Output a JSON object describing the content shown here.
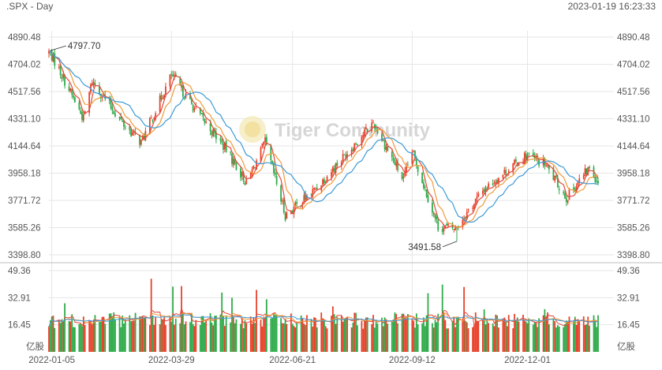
{
  "header": {
    "symbol": ".SPX - Day",
    "timestamp": "2023-01-19 16:23:33"
  },
  "watermark": "Tiger Community",
  "colors": {
    "up": "#e8402a",
    "down": "#2eaa49",
    "ma_fast": "#e24a3b",
    "ma_mid": "#f29a3a",
    "ma_slow": "#3d9ad8",
    "grid": "#e6e6e6",
    "divider": "#bdbdbd"
  },
  "chart_data": [
    {
      "type": "candlestick",
      "title": "",
      "y_ticks": [
        "4890.48",
        "4704.02",
        "4517.56",
        "4331.10",
        "4144.64",
        "3958.18",
        "3771.72",
        "3585.26",
        "3398.80"
      ],
      "ylim": [
        3398.8,
        4890.48
      ],
      "x_ticks": [
        "2022-01-05",
        "2022-03-29",
        "2022-06-21",
        "2022-09-12",
        "2022-12-01"
      ],
      "annotations": [
        {
          "label": "4797.70",
          "value": 4797.7,
          "date": "2022-01-04",
          "kind": "high"
        },
        {
          "label": "3491.58",
          "value": 3491.58,
          "date": "2022-10-13",
          "kind": "low"
        }
      ],
      "moving_averages": [
        "ma_fast",
        "ma_mid",
        "ma_slow"
      ],
      "close_path": [
        [
          "2022-01-03",
          4796
        ],
        [
          "2022-01-10",
          4670
        ],
        [
          "2022-01-27",
          4330
        ],
        [
          "2022-02-02",
          4590
        ],
        [
          "2022-02-24",
          4290
        ],
        [
          "2022-03-08",
          4170
        ],
        [
          "2022-03-29",
          4630
        ],
        [
          "2022-04-14",
          4400
        ],
        [
          "2022-05-06",
          4120
        ],
        [
          "2022-05-20",
          3890
        ],
        [
          "2022-06-02",
          4170
        ],
        [
          "2022-06-16",
          3670
        ],
        [
          "2022-07-05",
          3830
        ],
        [
          "2022-08-16",
          4305
        ],
        [
          "2022-09-06",
          3910
        ],
        [
          "2022-09-12",
          4110
        ],
        [
          "2022-09-30",
          3590
        ],
        [
          "2022-10-12",
          3580
        ],
        [
          "2022-11-01",
          3850
        ],
        [
          "2022-11-30",
          4080
        ],
        [
          "2022-12-13",
          4020
        ],
        [
          "2022-12-28",
          3790
        ],
        [
          "2023-01-13",
          3995
        ],
        [
          "2023-01-19",
          3900
        ]
      ]
    },
    {
      "type": "bar",
      "title": "",
      "unit_label": "亿股",
      "y_ticks": [
        "49.36",
        "32.91",
        "16.45"
      ],
      "ylim": [
        0,
        49.36
      ],
      "x_ticks": [
        "2022-01-05",
        "2022-03-29",
        "2022-06-21",
        "2022-09-12",
        "2022-12-01"
      ],
      "volume_range": [
        14,
        49
      ]
    }
  ]
}
